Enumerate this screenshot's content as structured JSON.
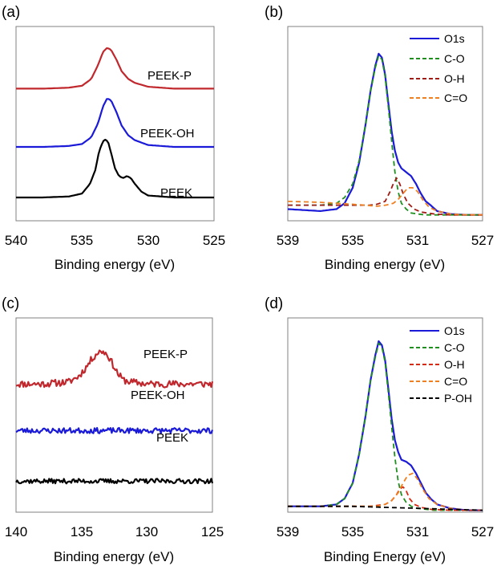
{
  "chart_data": [
    {
      "panel": "(a)",
      "type": "line",
      "title": "",
      "xlabel": "Binding energy (eV)",
      "ylabel": "",
      "xlim": [
        540,
        525
      ],
      "ylim": [
        0,
        1
      ],
      "x_ticks": [
        "540",
        "535",
        "530",
        "525"
      ],
      "grid": false,
      "legend": "none",
      "series": [
        {
          "name": "PEEK-P",
          "color": "#c0282d",
          "offset": 0.68,
          "baseline": 0.0,
          "x": [
            540,
            538,
            536,
            535,
            534.3,
            533.8,
            533.4,
            533.1,
            532.8,
            532.4,
            532,
            531.5,
            531,
            530,
            528,
            525
          ],
          "y": [
            0.0,
            0.0,
            0.005,
            0.015,
            0.05,
            0.12,
            0.19,
            0.21,
            0.2,
            0.15,
            0.09,
            0.05,
            0.03,
            0.01,
            0.0,
            0.0
          ]
        },
        {
          "name": "PEEK-OH",
          "color": "#1a1ad8",
          "offset": 0.38,
          "baseline": 0.0,
          "x": [
            540,
            538,
            536,
            535,
            534.3,
            533.8,
            533.4,
            533.1,
            532.8,
            532.4,
            532,
            531.5,
            531,
            530,
            528,
            525
          ],
          "y": [
            0.0,
            0.0,
            0.005,
            0.015,
            0.05,
            0.12,
            0.21,
            0.25,
            0.24,
            0.18,
            0.11,
            0.06,
            0.035,
            0.01,
            0.0,
            0.0
          ]
        },
        {
          "name": "PEEK",
          "color": "#000000",
          "offset": 0.12,
          "baseline": 0.0,
          "x": [
            540,
            538,
            536,
            535,
            534.4,
            534,
            533.7,
            533.4,
            533.2,
            533,
            532.8,
            532.5,
            532.2,
            531.9,
            531.6,
            531.3,
            531,
            530.5,
            530,
            528,
            525
          ],
          "y": [
            0.0,
            0.0,
            0.005,
            0.02,
            0.07,
            0.14,
            0.24,
            0.29,
            0.3,
            0.28,
            0.23,
            0.15,
            0.11,
            0.1,
            0.11,
            0.1,
            0.07,
            0.03,
            0.01,
            0.0,
            0.0
          ]
        }
      ]
    },
    {
      "panel": "(b)",
      "type": "line",
      "title": "",
      "xlabel": "Binding energy (eV)",
      "ylabel": "",
      "xlim": [
        539,
        527
      ],
      "ylim": [
        0,
        1
      ],
      "x_ticks": [
        "539",
        "535",
        "531",
        "527"
      ],
      "grid": false,
      "legend": "top-right",
      "series": [
        {
          "name": "O1s",
          "color": "#1a1ad8",
          "dash": "",
          "x": [
            539,
            537,
            536,
            535.5,
            535,
            534.6,
            534.2,
            533.9,
            533.6,
            533.4,
            533.2,
            533,
            532.8,
            532.6,
            532.4,
            532.2,
            532,
            531.7,
            531.4,
            531.1,
            530.8,
            530.5,
            530.2,
            529.8,
            529,
            528,
            527
          ],
          "y": [
            0.06,
            0.05,
            0.06,
            0.09,
            0.17,
            0.3,
            0.5,
            0.67,
            0.8,
            0.86,
            0.84,
            0.75,
            0.6,
            0.46,
            0.36,
            0.3,
            0.27,
            0.25,
            0.23,
            0.19,
            0.14,
            0.1,
            0.08,
            0.05,
            0.035,
            0.03,
            0.03
          ]
        },
        {
          "name": "C-O",
          "color": "#1f8f1f",
          "dash": "6,4",
          "x": [
            539,
            537,
            536,
            535.5,
            535,
            534.6,
            534.2,
            533.9,
            533.6,
            533.4,
            533.2,
            533,
            532.8,
            532.6,
            532.4,
            532.2,
            532,
            531.7,
            531.4,
            531,
            530.5,
            530,
            529,
            528,
            527
          ],
          "y": [
            0.08,
            0.08,
            0.09,
            0.12,
            0.19,
            0.31,
            0.5,
            0.67,
            0.79,
            0.85,
            0.83,
            0.74,
            0.58,
            0.41,
            0.25,
            0.15,
            0.09,
            0.06,
            0.04,
            0.035,
            0.03,
            0.03,
            0.03,
            0.03,
            0.03
          ]
        },
        {
          "name": "O-H",
          "color": "#a01c14",
          "dash": "6,4",
          "x": [
            539,
            534,
            533.5,
            533,
            532.7,
            532.5,
            532.3,
            532.1,
            531.9,
            531.6,
            531.2,
            530.8,
            530,
            529,
            527
          ],
          "y": [
            0.08,
            0.08,
            0.085,
            0.1,
            0.15,
            0.19,
            0.22,
            0.19,
            0.14,
            0.09,
            0.06,
            0.045,
            0.035,
            0.03,
            0.03
          ]
        },
        {
          "name": "C=O",
          "color": "#f07f1f",
          "dash": "6,4",
          "x": [
            539,
            537,
            535,
            533.5,
            533,
            532.5,
            532.2,
            531.9,
            531.6,
            531.3,
            531,
            530.7,
            530.3,
            529.8,
            529,
            528,
            527
          ],
          "y": [
            0.1,
            0.095,
            0.085,
            0.075,
            0.08,
            0.09,
            0.11,
            0.14,
            0.17,
            0.17,
            0.15,
            0.11,
            0.07,
            0.05,
            0.035,
            0.03,
            0.03
          ]
        }
      ]
    },
    {
      "panel": "(c)",
      "type": "line",
      "title": "",
      "xlabel": "Binding energy (eV)",
      "ylabel": "",
      "xlim": [
        140,
        125
      ],
      "ylim": [
        0,
        1
      ],
      "x_ticks": [
        "140",
        "135",
        "130",
        "125"
      ],
      "grid": false,
      "legend": "none",
      "series": [
        {
          "name": "PEEK-P",
          "color": "#c0282d",
          "offset": 0.66,
          "baseline": 0.0,
          "noise": 0.018,
          "seed": 11,
          "x": [
            140,
            138,
            136,
            135.2,
            134.6,
            134.2,
            133.8,
            133.4,
            133,
            132.6,
            132.2,
            131.8,
            131.2,
            130,
            128,
            126,
            125
          ],
          "y": [
            0.0,
            0.0,
            0.01,
            0.04,
            0.09,
            0.13,
            0.16,
            0.17,
            0.15,
            0.1,
            0.05,
            0.02,
            0.01,
            0.0,
            0.0,
            0.0,
            0.0
          ]
        },
        {
          "name": "PEEK-OH",
          "color": "#1a1ad8",
          "offset": 0.42,
          "baseline": 0.0,
          "noise": 0.014,
          "seed": 23,
          "x": [
            140,
            125
          ],
          "y": [
            0.0,
            0.0
          ]
        },
        {
          "name": "PEEK",
          "color": "#000000",
          "offset": 0.16,
          "baseline": 0.0,
          "noise": 0.012,
          "seed": 37,
          "x": [
            140,
            125
          ],
          "y": [
            0.0,
            0.0
          ]
        }
      ]
    },
    {
      "panel": "(d)",
      "type": "line",
      "title": "",
      "xlabel": "Binding Energy (eV)",
      "ylabel": "",
      "xlim": [
        539,
        527
      ],
      "ylim": [
        0,
        1
      ],
      "x_ticks": [
        "539",
        "535",
        "531",
        "527"
      ],
      "grid": false,
      "legend": "top-right",
      "series": [
        {
          "name": "O1s",
          "color": "#1a1ad8",
          "dash": "",
          "x": [
            539,
            537,
            536,
            535.5,
            535,
            534.6,
            534.2,
            533.9,
            533.6,
            533.4,
            533.2,
            533,
            532.8,
            532.6,
            532.4,
            532.2,
            532,
            531.7,
            531.4,
            531.1,
            530.8,
            530.5,
            530.2,
            529.8,
            529,
            528,
            527
          ],
          "y": [
            0.03,
            0.03,
            0.04,
            0.07,
            0.15,
            0.3,
            0.5,
            0.68,
            0.81,
            0.88,
            0.86,
            0.78,
            0.63,
            0.48,
            0.37,
            0.31,
            0.27,
            0.26,
            0.24,
            0.2,
            0.15,
            0.1,
            0.07,
            0.04,
            0.02,
            0.01,
            0.01
          ]
        },
        {
          "name": "C-O",
          "color": "#1f8f1f",
          "dash": "6,4",
          "x": [
            539,
            537,
            536,
            535.5,
            535,
            534.6,
            534.2,
            533.9,
            533.6,
            533.4,
            533.2,
            533,
            532.8,
            532.6,
            532.4,
            532.2,
            532,
            531.7,
            531.4,
            531,
            530.5,
            530,
            529,
            528,
            527
          ],
          "y": [
            0.03,
            0.03,
            0.04,
            0.07,
            0.15,
            0.3,
            0.5,
            0.68,
            0.8,
            0.87,
            0.85,
            0.77,
            0.61,
            0.44,
            0.28,
            0.16,
            0.09,
            0.05,
            0.03,
            0.02,
            0.015,
            0.01,
            0.01,
            0.01,
            0.01
          ]
        },
        {
          "name": "O-H",
          "color": "#d82a10",
          "dash": "6,4",
          "x": [
            539,
            534,
            533,
            532.6,
            532.3,
            532.1,
            531.9,
            531.7,
            531.5,
            531.2,
            530.8,
            530.2,
            529,
            527
          ],
          "y": [
            0.03,
            0.03,
            0.04,
            0.06,
            0.09,
            0.12,
            0.13,
            0.11,
            0.07,
            0.04,
            0.025,
            0.015,
            0.01,
            0.01
          ]
        },
        {
          "name": "C=O",
          "color": "#f07f1f",
          "dash": "6,4",
          "x": [
            539,
            535,
            533.5,
            533,
            532.6,
            532.2,
            531.9,
            531.6,
            531.3,
            531,
            530.7,
            530.3,
            529.8,
            529,
            528,
            527
          ],
          "y": [
            0.03,
            0.03,
            0.03,
            0.04,
            0.06,
            0.1,
            0.15,
            0.19,
            0.2,
            0.17,
            0.12,
            0.07,
            0.04,
            0.02,
            0.01,
            0.01
          ]
        },
        {
          "name": "P-OH",
          "color": "#000000",
          "dash": "6,4",
          "x": [
            539,
            537,
            535,
            533,
            531,
            529,
            527
          ],
          "y": [
            0.03,
            0.03,
            0.03,
            0.025,
            0.02,
            0.015,
            0.01
          ]
        }
      ]
    }
  ]
}
